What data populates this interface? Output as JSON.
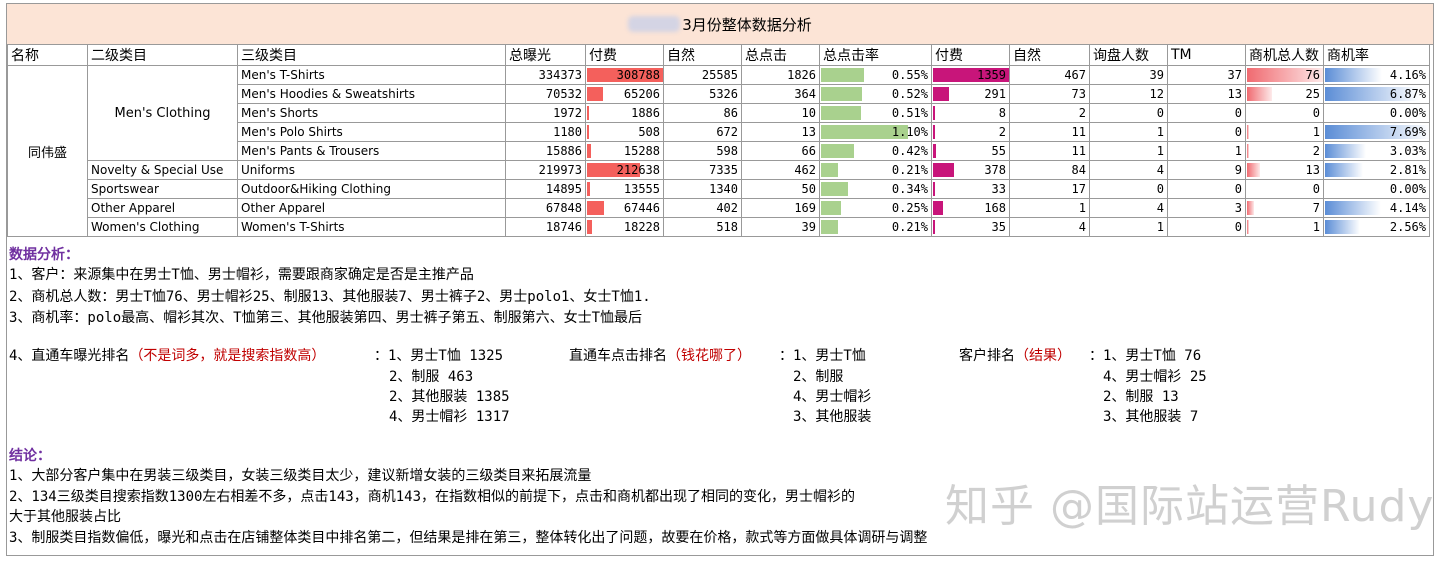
{
  "title": "3月份整体数据分析",
  "headers": [
    "名称",
    "二级类目",
    "三级类目",
    "总曝光",
    "付费",
    "自然",
    "总点击",
    "总点击率",
    "付费",
    "自然",
    "询盘人数",
    "TM",
    "商机总人数",
    "商机率"
  ],
  "store_name": "同伟盛",
  "level2": {
    "mens_clothing": "Men's Clothing",
    "novelty": "Novelty & Special Use",
    "sportswear": "Sportswear",
    "other": "Other Apparel",
    "womens": "Women's Clothing"
  },
  "rows": [
    {
      "l3": "Men's T-Shirts",
      "exposure": "334373",
      "paid": "308788",
      "natural": "25585",
      "clicks": "1826",
      "ctr": "0.55%",
      "paid_clicks": "1359",
      "natural_clicks": "467",
      "inquiries": "39",
      "tm": "37",
      "opps": "76",
      "opp_rate": "4.16%"
    },
    {
      "l3": "Men's Hoodies & Sweatshirts",
      "exposure": "70532",
      "paid": "65206",
      "natural": "5326",
      "clicks": "364",
      "ctr": "0.52%",
      "paid_clicks": "291",
      "natural_clicks": "73",
      "inquiries": "12",
      "tm": "13",
      "opps": "25",
      "opp_rate": "6.87%"
    },
    {
      "l3": "Men's Shorts",
      "exposure": "1972",
      "paid": "1886",
      "natural": "86",
      "clicks": "10",
      "ctr": "0.51%",
      "paid_clicks": "8",
      "natural_clicks": "2",
      "inquiries": "0",
      "tm": "0",
      "opps": "0",
      "opp_rate": "0.00%"
    },
    {
      "l3": "Men's Polo Shirts",
      "exposure": "1180",
      "paid": "508",
      "natural": "672",
      "clicks": "13",
      "ctr": "1.10%",
      "paid_clicks": "2",
      "natural_clicks": "11",
      "inquiries": "1",
      "tm": "0",
      "opps": "1",
      "opp_rate": "7.69%"
    },
    {
      "l3": "Men's Pants & Trousers",
      "exposure": "15886",
      "paid": "15288",
      "natural": "598",
      "clicks": "66",
      "ctr": "0.42%",
      "paid_clicks": "55",
      "natural_clicks": "11",
      "inquiries": "1",
      "tm": "1",
      "opps": "2",
      "opp_rate": "3.03%"
    },
    {
      "l3": "Uniforms",
      "exposure": "219973",
      "paid": "212638",
      "natural": "7335",
      "clicks": "462",
      "ctr": "0.21%",
      "paid_clicks": "378",
      "natural_clicks": "84",
      "inquiries": "4",
      "tm": "9",
      "opps": "13",
      "opp_rate": "2.81%"
    },
    {
      "l3": "Outdoor&Hiking Clothing",
      "exposure": "14895",
      "paid": "13555",
      "natural": "1340",
      "clicks": "50",
      "ctr": "0.34%",
      "paid_clicks": "33",
      "natural_clicks": "17",
      "inquiries": "0",
      "tm": "0",
      "opps": "0",
      "opp_rate": "0.00%"
    },
    {
      "l3": "Other Apparel",
      "exposure": "67848",
      "paid": "67446",
      "natural": "402",
      "clicks": "169",
      "ctr": "0.25%",
      "paid_clicks": "168",
      "natural_clicks": "1",
      "inquiries": "4",
      "tm": "3",
      "opps": "7",
      "opp_rate": "4.14%"
    },
    {
      "l3": "Women's T-Shirts",
      "exposure": "18746",
      "paid": "18228",
      "natural": "518",
      "clicks": "39",
      "ctr": "0.21%",
      "paid_clicks": "35",
      "natural_clicks": "4",
      "inquiries": "1",
      "tm": "0",
      "opps": "1",
      "opp_rate": "2.56%"
    }
  ],
  "bars": {
    "paid": [
      1.0,
      0.21,
      0.006,
      0.002,
      0.05,
      0.69,
      0.044,
      0.218,
      0.059
    ],
    "ctr": [
      0.5,
      0.473,
      0.464,
      1.0,
      0.382,
      0.191,
      0.309,
      0.227,
      0.191
    ],
    "paid_clicks": [
      1.0,
      0.214,
      0.006,
      0.0015,
      0.04,
      0.278,
      0.024,
      0.124,
      0.026
    ],
    "opps": [
      1.0,
      0.329,
      0.0,
      0.013,
      0.026,
      0.171,
      0.0,
      0.092,
      0.013
    ],
    "opp_rate": [
      0.541,
      0.893,
      0.0,
      1.0,
      0.394,
      0.365,
      0.0,
      0.538,
      0.333
    ]
  },
  "analysis": {
    "heading": "数据分析：",
    "line1": "1、客户：来源集中在男士T恤、男士帽衫，需要跟商家确定是否是主推产品",
    "line2": "2、商机总人数：男士T恤76、男士帽衫25、制服13、其他服装7、男士裤子2、男士polo1、女士T恤1.",
    "line3": "3、商机率：polo最高、帽衫其次、T恤第三、其他服装第四、男士裤子第五、制服第六、女士T恤最后"
  },
  "rankings": {
    "exposure_label": "4、直通车曝光排名",
    "exposure_note": "（不是词多，就是搜索指数高）",
    "exposure_items": [
      "：1、男士T恤   1325",
      "2、制服      463",
      "2、其他服装  1385",
      "4、男士帽衫  1317"
    ],
    "click_label": "直通车点击排名",
    "click_note": "（钱花哪了）",
    "click_items": [
      "：1、男士T恤",
      "2、制服",
      "4、男士帽衫",
      "3、其他服装"
    ],
    "customer_label": "客户排名",
    "customer_note": "（结果）",
    "customer_items": [
      "：1、男士T恤   76",
      "4、男士帽衫 25",
      "2、制服     13",
      "3、其他服装  7"
    ]
  },
  "conclusion": {
    "heading": "结论：",
    "line1": "1、大部分客户集中在男装三级类目，女装三级类目太少，建议新增女装的三级类目来拓展流量",
    "line2": "2、134三级类目搜索指数1300左右相差不多，点击143，商机143，在指数相似的前提下，点击和商机都出现了相同的变化，男士帽衫的",
    "line3": "大于其他服装占比",
    "line4": "3、制服类目指数偏低，曝光和点击在店铺整体类目中排名第二，但结果是排在第三，整体转化出了问题，故要在价格，款式等方面做具体调研与调整"
  },
  "watermark": "知乎 @国际站运营Rudy"
}
